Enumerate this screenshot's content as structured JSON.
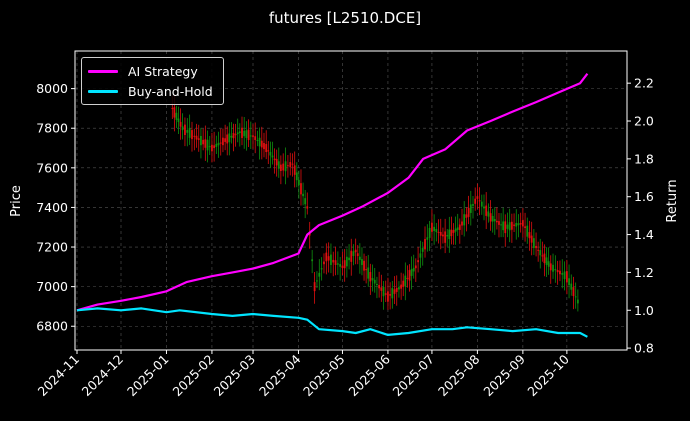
{
  "chart_data": {
    "type": "line",
    "title": "futures [L2510.DCE]",
    "ylabel": "Price",
    "y2label": "Return",
    "ylim": [
      6680,
      8190
    ],
    "y2lim": [
      0.79,
      2.37
    ],
    "x_ticks": [
      "2024-11",
      "2024-12",
      "2025-01",
      "2025-02",
      "2025-03",
      "2025-04",
      "2025-05",
      "2025-06",
      "2025-07",
      "2025-08",
      "2025-09",
      "2025-10"
    ],
    "y_ticks": [
      6800,
      7000,
      7200,
      7400,
      7600,
      7800,
      8000
    ],
    "y2_ticks": [
      "0.8",
      "1.0",
      "1.2",
      "1.4",
      "1.6",
      "1.8",
      "2.0",
      "2.2"
    ],
    "grid": true,
    "legend_position": "top-left",
    "colors": {
      "ai": "#ff00ff",
      "bh": "#00e5ff",
      "up": "#e01010",
      "down": "#109010",
      "background": "#000000",
      "grid": "#555555"
    },
    "series": [
      {
        "name": "AI Strategy",
        "axis": "right",
        "x": [
          "2024-11-01",
          "2024-11-15",
          "2024-12-01",
          "2024-12-15",
          "2025-01-01",
          "2025-01-15",
          "2025-02-01",
          "2025-02-15",
          "2025-03-01",
          "2025-03-15",
          "2025-04-01",
          "2025-04-07",
          "2025-04-15",
          "2025-05-01",
          "2025-05-15",
          "2025-06-01",
          "2025-06-15",
          "2025-06-25",
          "2025-07-10",
          "2025-07-25",
          "2025-08-10",
          "2025-08-25",
          "2025-09-10",
          "2025-09-25",
          "2025-10-10",
          "2025-10-15"
        ],
        "values": [
          1.0,
          1.03,
          1.05,
          1.07,
          1.1,
          1.15,
          1.18,
          1.2,
          1.22,
          1.25,
          1.3,
          1.4,
          1.45,
          1.5,
          1.55,
          1.62,
          1.7,
          1.8,
          1.85,
          1.95,
          2.0,
          2.05,
          2.1,
          2.15,
          2.2,
          2.25
        ]
      },
      {
        "name": "Buy-and-Hold",
        "axis": "right",
        "x": [
          "2024-11-01",
          "2024-11-15",
          "2024-12-01",
          "2024-12-15",
          "2025-01-01",
          "2025-01-10",
          "2025-02-01",
          "2025-02-15",
          "2025-03-01",
          "2025-03-15",
          "2025-04-01",
          "2025-04-07",
          "2025-04-15",
          "2025-05-01",
          "2025-05-10",
          "2025-05-20",
          "2025-06-01",
          "2025-06-15",
          "2025-07-01",
          "2025-07-15",
          "2025-07-25",
          "2025-08-10",
          "2025-08-25",
          "2025-09-10",
          "2025-09-25",
          "2025-10-10",
          "2025-10-15"
        ],
        "values": [
          1.0,
          1.01,
          1.0,
          1.01,
          0.99,
          1.0,
          0.98,
          0.97,
          0.98,
          0.97,
          0.96,
          0.95,
          0.9,
          0.89,
          0.88,
          0.9,
          0.87,
          0.88,
          0.9,
          0.9,
          0.91,
          0.9,
          0.89,
          0.9,
          0.88,
          0.88,
          0.86
        ]
      },
      {
        "name": "price",
        "axis": "left",
        "x": [
          "2025-01-05",
          "2025-01-12",
          "2025-01-20",
          "2025-02-01",
          "2025-02-10",
          "2025-02-20",
          "2025-03-01",
          "2025-03-10",
          "2025-03-20",
          "2025-03-28",
          "2025-04-07",
          "2025-04-12",
          "2025-04-20",
          "2025-05-01",
          "2025-05-10",
          "2025-05-20",
          "2025-06-01",
          "2025-06-10",
          "2025-06-20",
          "2025-07-01",
          "2025-07-10",
          "2025-07-20",
          "2025-08-01",
          "2025-08-10",
          "2025-08-20",
          "2025-09-01",
          "2025-09-10",
          "2025-09-20",
          "2025-10-01",
          "2025-10-10"
        ],
        "values": [
          7900,
          7800,
          7760,
          7700,
          7740,
          7780,
          7760,
          7700,
          7600,
          7620,
          7400,
          7000,
          7150,
          7100,
          7180,
          7050,
          6950,
          7000,
          7100,
          7300,
          7250,
          7300,
          7450,
          7350,
          7300,
          7320,
          7200,
          7100,
          7050,
          6900
        ]
      }
    ]
  }
}
